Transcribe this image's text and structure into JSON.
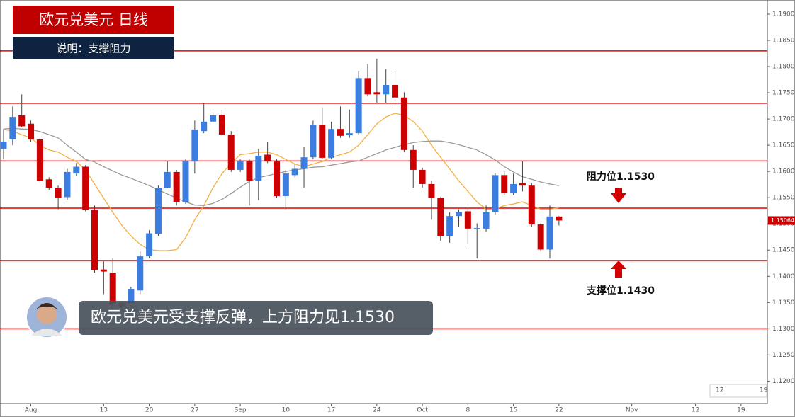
{
  "chart_data": {
    "type": "candlestick",
    "title": "欧元兑美元  日线",
    "subtitle": "说明：支撑阻力",
    "annotation": "欧元兑美元受支撑反弹，上方阻力见1.1530",
    "resistance_label": "阻力位1.1530",
    "support_label": "支撑位1.1430",
    "last_price": {
      "value": 1.15064,
      "label": "1.15064"
    },
    "navigator_labels": [
      "12",
      "19"
    ],
    "up_color": "#3c7ee0",
    "down_color": "#cc0000",
    "level_color": "#e00000",
    "levels": [
      1.183,
      1.173,
      1.162,
      1.153,
      1.143,
      1.13
    ],
    "ylim": [
      1.116,
      1.1927
    ],
    "yticks": [
      {
        "value": 1.19,
        "label": "1.19000"
      },
      {
        "value": 1.185,
        "label": "1.18500"
      },
      {
        "value": 1.18,
        "label": "1.18000"
      },
      {
        "value": 1.175,
        "label": "1.17500"
      },
      {
        "value": 1.17,
        "label": "1.17000"
      },
      {
        "value": 1.165,
        "label": "1.16500"
      },
      {
        "value": 1.16,
        "label": "1.16000"
      },
      {
        "value": 1.155,
        "label": "1.15500"
      },
      {
        "value": 1.15,
        "label": "1.15000"
      },
      {
        "value": 1.145,
        "label": "1.14500"
      },
      {
        "value": 1.14,
        "label": "1.14000"
      },
      {
        "value": 1.135,
        "label": "1.13500"
      },
      {
        "value": 1.13,
        "label": "1.13000"
      },
      {
        "value": 1.125,
        "label": "1.12500"
      },
      {
        "value": 1.12,
        "label": "1.12000"
      }
    ],
    "categories": [
      null,
      null,
      null,
      "Aug",
      null,
      null,
      null,
      null,
      null,
      null,
      null,
      "13",
      null,
      null,
      null,
      null,
      "20",
      null,
      null,
      null,
      null,
      "27",
      null,
      null,
      null,
      null,
      "Sep",
      null,
      null,
      null,
      null,
      "10",
      null,
      null,
      null,
      null,
      "17",
      null,
      null,
      null,
      null,
      "24",
      null,
      null,
      null,
      null,
      "Oct",
      null,
      null,
      null,
      null,
      "8",
      null,
      null,
      null,
      null,
      "15",
      null,
      null,
      null,
      null,
      "22",
      null,
      null,
      null,
      null,
      null,
      null,
      null,
      "Nov",
      null,
      null,
      null,
      null,
      null,
      null,
      "12",
      null,
      null,
      null,
      null,
      "19",
      null,
      null
    ],
    "open": [
      1.1643,
      1.1661,
      1.1707,
      1.1691,
      1.1661,
      1.1585,
      1.1569,
      1.1551,
      1.1596,
      1.1609,
      1.1527,
      1.1413,
      1.1407,
      1.1349,
      1.1346,
      1.1373,
      1.1438,
      1.1481,
      1.1569,
      1.1599,
      1.1542,
      1.1619,
      1.1677,
      1.1695,
      1.1708,
      1.167,
      1.1603,
      1.1619,
      1.1582,
      1.1632,
      1.1619,
      1.1553,
      1.1593,
      1.1605,
      1.1627,
      1.1689,
      1.1626,
      1.1681,
      1.1669,
      1.1673,
      1.1778,
      1.1751,
      1.1747,
      1.1765,
      1.1741,
      1.1641,
      1.1603,
      1.1576,
      1.1549,
      1.1477,
      1.1515,
      1.1524,
      1.1491,
      1.1491,
      1.1522,
      1.1593,
      1.1559,
      1.1578,
      1.1573,
      1.1499,
      1.1451,
      1.1514,
      null,
      null,
      null,
      null,
      null,
      null,
      null,
      null,
      null,
      null,
      null,
      null,
      null,
      null,
      null,
      null,
      null,
      null,
      null,
      null,
      null,
      null
    ],
    "high": [
      1.1681,
      1.1724,
      1.1747,
      1.1697,
      1.1664,
      1.1589,
      1.1573,
      1.1605,
      1.1616,
      1.1612,
      1.1535,
      1.143,
      1.1434,
      1.1353,
      1.138,
      1.1447,
      1.1488,
      1.1573,
      1.1619,
      1.1603,
      1.1623,
      1.1697,
      1.1731,
      1.1714,
      1.1718,
      1.1677,
      1.1623,
      1.1623,
      1.1643,
      1.1657,
      1.1623,
      1.1603,
      1.1614,
      1.1646,
      1.1697,
      1.1722,
      1.1695,
      1.1724,
      1.1718,
      1.1792,
      1.1805,
      1.1815,
      1.1795,
      1.1796,
      1.1751,
      1.165,
      1.1607,
      1.1582,
      1.1551,
      1.1522,
      1.1528,
      1.1528,
      1.1501,
      1.1535,
      1.1596,
      1.16,
      1.1596,
      1.1619,
      1.1578,
      1.1501,
      1.1535,
      1.1515,
      null,
      null,
      null,
      null,
      null,
      null,
      null,
      null,
      null,
      null,
      null,
      null,
      null,
      null,
      null,
      null,
      null,
      null,
      null,
      null,
      null,
      null
    ],
    "low": [
      1.1623,
      1.165,
      1.1684,
      1.1657,
      1.1578,
      1.1565,
      1.1528,
      1.1546,
      1.1592,
      1.1524,
      1.1407,
      1.1366,
      1.1339,
      1.1341,
      1.1343,
      1.1366,
      1.1434,
      1.1477,
      1.1568,
      1.1535,
      1.1538,
      1.1596,
      1.1673,
      1.1691,
      1.1668,
      1.1599,
      1.1599,
      1.1535,
      1.1545,
      1.1616,
      1.1549,
      1.1528,
      1.1589,
      1.1569,
      1.1623,
      1.1623,
      1.1623,
      1.1664,
      1.1664,
      1.167,
      1.1743,
      1.1731,
      1.1731,
      1.1727,
      1.1637,
      1.1569,
      1.1569,
      1.1508,
      1.1468,
      1.1464,
      1.1495,
      1.1461,
      1.1434,
      1.1485,
      1.1518,
      1.1555,
      1.1555,
      1.1562,
      1.1495,
      1.1447,
      1.1434,
      1.1497,
      null,
      null,
      null,
      null,
      null,
      null,
      null,
      null,
      null,
      null,
      null,
      null,
      null,
      null,
      null,
      null,
      null,
      null,
      null,
      null,
      null,
      null
    ],
    "close": [
      1.1657,
      1.1704,
      1.1686,
      1.1661,
      1.1582,
      1.1569,
      1.1549,
      1.1599,
      1.1609,
      1.1527,
      1.1412,
      1.1409,
      1.1346,
      1.1343,
      1.1376,
      1.1438,
      1.1482,
      1.1569,
      1.1599,
      1.1542,
      1.1619,
      1.168,
      1.1695,
      1.1707,
      1.167,
      1.1603,
      1.1619,
      1.1582,
      1.163,
      1.1619,
      1.1553,
      1.1596,
      1.1605,
      1.1627,
      1.1689,
      1.1626,
      1.1681,
      1.1668,
      1.1673,
      1.1778,
      1.1747,
      1.1747,
      1.1765,
      1.1741,
      1.1641,
      1.1603,
      1.1576,
      1.1549,
      1.1477,
      1.1515,
      1.1522,
      1.1491,
      1.1492,
      1.1522,
      1.1593,
      1.1559,
      1.1576,
      1.1573,
      1.1499,
      1.1451,
      1.1514,
      1.15064,
      null,
      null,
      null,
      null,
      null,
      null,
      null,
      null,
      null,
      null,
      null,
      null,
      null,
      null,
      null,
      null,
      null,
      null,
      null,
      null,
      null,
      null
    ],
    "lines": [
      {
        "color": "#f5b041",
        "values": [
          1.168,
          1.1677,
          1.167,
          1.1664,
          1.165,
          1.1641,
          1.1637,
          1.1627,
          1.1619,
          1.1603,
          1.1576,
          1.1549,
          1.1522,
          1.1497,
          1.1477,
          1.1461,
          1.1451,
          1.1449,
          1.1449,
          1.1451,
          1.1474,
          1.1508,
          1.1535,
          1.1569,
          1.1596,
          1.1616,
          1.1632,
          1.1634,
          1.1637,
          1.1637,
          1.1632,
          1.1623,
          1.1614,
          1.1609,
          1.1614,
          1.1619,
          1.1627,
          1.1632,
          1.1637,
          1.165,
          1.167,
          1.1691,
          1.1704,
          1.1711,
          1.1707,
          1.1695,
          1.1677,
          1.165,
          1.1627,
          1.1605,
          1.1582,
          1.1562,
          1.1542,
          1.1528,
          1.1528,
          1.1535,
          1.1538,
          1.1542,
          1.1535,
          1.1528,
          1.1528,
          1.1531,
          null,
          null,
          null,
          null,
          null,
          null,
          null,
          null,
          null,
          null,
          null,
          null,
          null,
          null,
          null,
          null,
          null,
          null,
          null,
          null,
          null,
          null
        ]
      },
      {
        "color": "#9a9a9a",
        "values": [
          1.1681,
          1.1682,
          1.1681,
          1.168,
          1.1676,
          1.167,
          1.1664,
          1.165,
          1.1637,
          1.1623,
          1.1618,
          1.1609,
          1.1601,
          1.1593,
          1.1587,
          1.158,
          1.1573,
          1.1565,
          1.1557,
          1.1549,
          1.1542,
          1.1536,
          1.1535,
          1.1539,
          1.1547,
          1.1558,
          1.157,
          1.1581,
          1.1588,
          1.1592,
          1.1596,
          1.16,
          1.1603,
          1.1605,
          1.1608,
          1.1609,
          1.1612,
          1.1615,
          1.1618,
          1.162,
          1.1627,
          1.1634,
          1.1641,
          1.1646,
          1.1651,
          1.1655,
          1.1657,
          1.1658,
          1.1658,
          1.1655,
          1.1651,
          1.1646,
          1.1641,
          1.1632,
          1.1622,
          1.1609,
          1.1599,
          1.159,
          1.1585,
          1.158,
          1.1576,
          1.1573,
          null,
          null,
          null,
          null,
          null,
          null,
          null,
          null,
          null,
          null,
          null,
          null,
          null,
          null,
          null,
          null,
          null,
          null,
          null,
          null,
          null,
          null
        ]
      }
    ]
  }
}
